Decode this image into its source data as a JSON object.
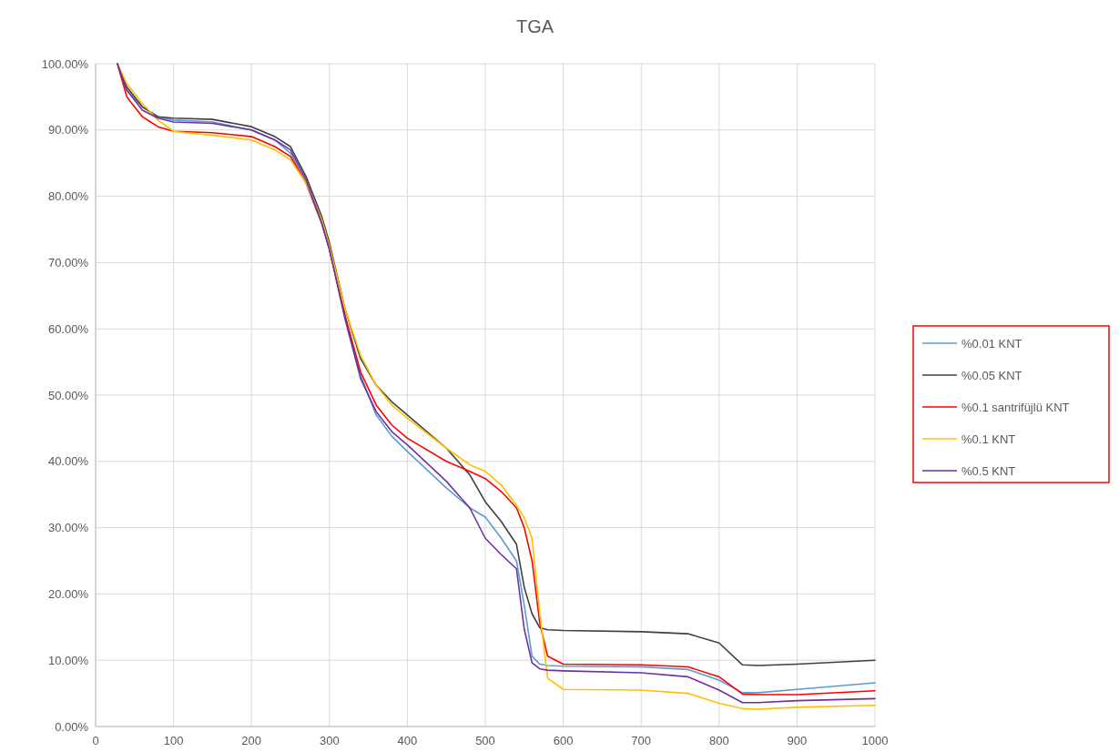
{
  "chart_data": {
    "type": "line",
    "title": "TGA",
    "x": [
      28,
      40,
      60,
      80,
      100,
      150,
      200,
      230,
      250,
      270,
      290,
      300,
      320,
      340,
      360,
      380,
      400,
      450,
      480,
      500,
      520,
      540,
      550,
      560,
      570,
      580,
      600,
      700,
      760,
      800,
      830,
      850,
      900,
      1000
    ],
    "series": [
      {
        "name": "%0.01 KNT",
        "color": "#5b9bd5",
        "values": [
          100,
          96,
          93.5,
          92,
          91.5,
          91.2,
          90,
          88.5,
          86.5,
          82,
          76,
          72,
          62,
          53,
          47,
          43.8,
          41.5,
          36,
          33,
          31.6,
          28.5,
          25,
          18.3,
          10.6,
          9.4,
          9.2,
          9.1,
          9.0,
          8.6,
          7.0,
          5.1,
          5.1,
          5.6,
          6.6
        ]
      },
      {
        "name": "%0.05 KNT",
        "color": "#404040",
        "values": [
          100,
          96.5,
          93.5,
          92,
          91.8,
          91.6,
          90.5,
          89,
          87.5,
          83,
          77,
          73,
          63,
          55.5,
          51.5,
          49,
          47,
          42,
          38,
          33.9,
          31,
          27.5,
          21,
          17,
          14.9,
          14.6,
          14.5,
          14.3,
          14.0,
          12.6,
          9.3,
          9.2,
          9.4,
          10.0
        ]
      },
      {
        "name": "%0.1 santrifüjlü KNT",
        "color": "#ff0000",
        "values": [
          100,
          95,
          92,
          90.5,
          89.8,
          89.6,
          89,
          87.5,
          86,
          82,
          76,
          72,
          62,
          53.5,
          48.5,
          45.5,
          43.5,
          40,
          38.5,
          37.4,
          35.5,
          33,
          30,
          25,
          15.5,
          10.6,
          9.4,
          9.3,
          9.0,
          7.5,
          4.9,
          4.8,
          4.8,
          5.4
        ]
      },
      {
        "name": "%0.1 KNT",
        "color": "#ffc000",
        "values": [
          100,
          97,
          94,
          91.5,
          89.8,
          89.2,
          88.5,
          87,
          85.5,
          82,
          76.5,
          72.5,
          63,
          56,
          51.5,
          48.5,
          46.5,
          42,
          39.5,
          38.5,
          36.5,
          33.4,
          31.5,
          28.4,
          17,
          7.3,
          5.6,
          5.5,
          5.0,
          3.5,
          2.7,
          2.6,
          2.9,
          3.2
        ]
      },
      {
        "name": "%0.5 KNT",
        "color": "#7030a0",
        "values": [
          100,
          96,
          93,
          91.8,
          91.2,
          91,
          90,
          88.5,
          87,
          82.5,
          76,
          72,
          61.5,
          52.5,
          47.5,
          44.5,
          42.5,
          37,
          33,
          28.4,
          26,
          23.8,
          14.7,
          9.6,
          8.7,
          8.5,
          8.4,
          8.1,
          7.5,
          5.5,
          3.6,
          3.6,
          3.9,
          4.2
        ]
      }
    ],
    "xlim": [
      0,
      1000
    ],
    "xticks": [
      0,
      100,
      200,
      300,
      400,
      500,
      600,
      700,
      800,
      900,
      1000
    ],
    "ylim": [
      0,
      100
    ],
    "yticks": [
      {
        "value": 0,
        "label": "0.00%"
      },
      {
        "value": 10,
        "label": "10.00%"
      },
      {
        "value": 20,
        "label": "20.00%"
      },
      {
        "value": 30,
        "label": "30.00%"
      },
      {
        "value": 40,
        "label": "40.00%"
      },
      {
        "value": 50,
        "label": "50.00%"
      },
      {
        "value": 60,
        "label": "60.00%"
      },
      {
        "value": 70,
        "label": "70.00%"
      },
      {
        "value": 80,
        "label": "80.00%"
      },
      {
        "value": 90,
        "label": "90.00%"
      },
      {
        "value": 100,
        "label": "100.00%"
      }
    ],
    "grid": true,
    "legend": "right",
    "marker": "none",
    "line_style": "solid"
  }
}
